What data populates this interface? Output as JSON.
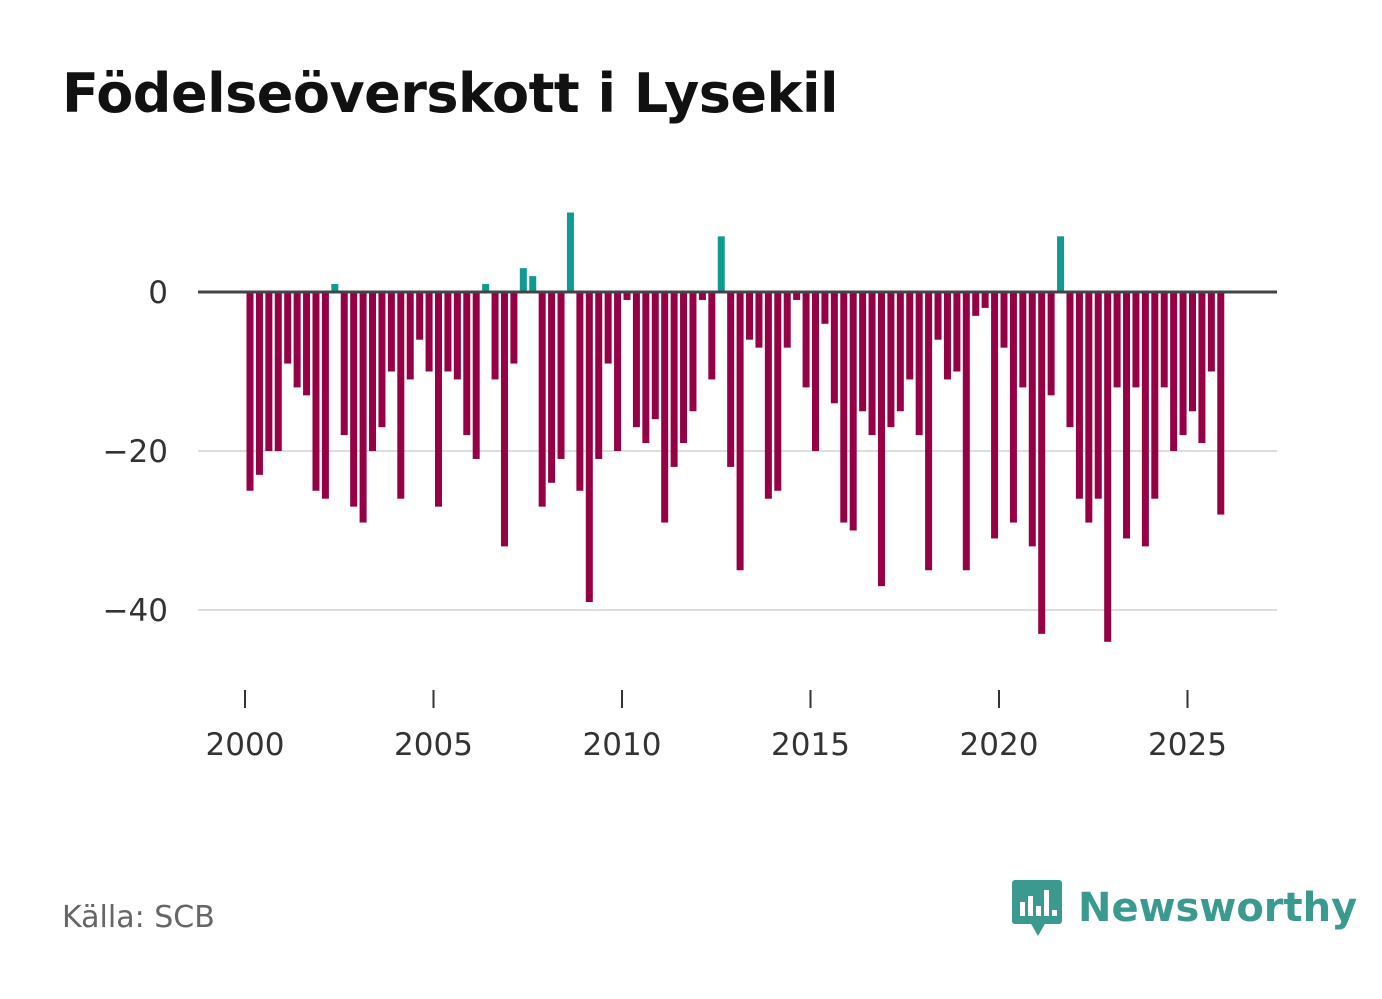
{
  "chart_data": {
    "type": "bar",
    "title": "Födelseöverskott i Lysekil",
    "xlabel": "",
    "ylabel": "",
    "x_ticks": [
      "2000",
      "2005",
      "2010",
      "2015",
      "2020",
      "2025"
    ],
    "y_ticks": [
      "0",
      "−20",
      "−40"
    ],
    "y_tick_values": [
      0,
      -20,
      -40
    ],
    "ylim": [
      -50,
      11
    ],
    "xlim": [
      1999,
      2027.33
    ],
    "grid": true,
    "colors": {
      "positive": "#0f9a93",
      "negative": "#960044",
      "grid": "#dddddd",
      "zero": "#444444"
    },
    "series": [
      {
        "name": "Födelseöverskott",
        "start_year": 2000,
        "step": 0.25,
        "values": [
          -25,
          -23,
          -20,
          -20,
          -9,
          -12,
          -13,
          -25,
          -26,
          1,
          -18,
          -27,
          -29,
          -20,
          -17,
          -10,
          -26,
          -11,
          -6,
          -10,
          -27,
          -10,
          -11,
          -18,
          -21,
          1,
          -11,
          -32,
          -9,
          3,
          2,
          -27,
          -24,
          -21,
          10,
          -25,
          -39,
          -21,
          -9,
          -20,
          -1,
          -17,
          -19,
          -16,
          -29,
          -22,
          -19,
          -15,
          -1,
          -11,
          7,
          -22,
          -35,
          -6,
          -7,
          -26,
          -25,
          -7,
          -1,
          -12,
          -20,
          -4,
          -14,
          -29,
          -30,
          -15,
          -18,
          -37,
          -17,
          -15,
          -11,
          -18,
          -35,
          -6,
          -11,
          -10,
          -35,
          -3,
          -2,
          -31,
          -7,
          -29,
          -12,
          -32,
          -43,
          -13,
          7,
          -17,
          -26,
          -29,
          -26,
          -44,
          -12,
          -31,
          -12,
          -32,
          -26,
          -12,
          -20,
          -18,
          -15,
          -19,
          -10,
          -28
        ]
      }
    ]
  },
  "source": "Källa: SCB",
  "logo": {
    "text": "Newsworthy",
    "icon": "newsworthy-chart-bubble-icon"
  }
}
